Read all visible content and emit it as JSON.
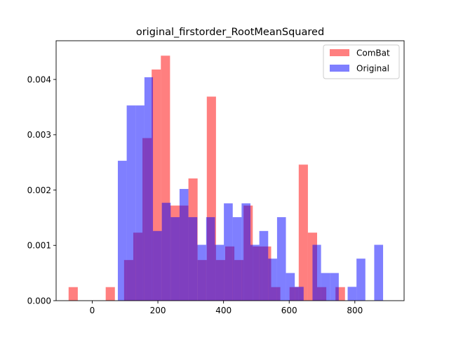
{
  "chart_data": {
    "type": "histogram",
    "title": "original_firstorder_RootMeanSquared",
    "xlabel": "",
    "ylabel": "",
    "xlim": [
      -110,
      950
    ],
    "ylim": [
      0,
      0.0047
    ],
    "xticks": [
      0,
      200,
      400,
      600,
      800
    ],
    "yticks": [
      0.0,
      0.001,
      0.002,
      0.003,
      0.004
    ],
    "xtick_labels": [
      "0",
      "200",
      "400",
      "600",
      "800"
    ],
    "ytick_labels": [
      "0.000",
      "0.001",
      "0.002",
      "0.003",
      "0.004"
    ],
    "grid": false,
    "legend_position": "top-right",
    "series": [
      {
        "name": "ComBat",
        "color": "#ff0000",
        "alpha": 0.5,
        "bin_edges": [
          -72,
          -44,
          -16,
          13,
          41,
          69,
          97,
          125,
          153,
          181,
          209,
          237,
          265,
          293,
          321,
          349,
          377,
          405,
          433,
          461,
          489,
          517,
          545,
          573,
          601,
          629,
          657,
          685,
          713,
          741,
          770
        ],
        "values": [
          0.000245,
          0,
          0,
          0,
          0.000245,
          0,
          0.000735,
          0.00123,
          0.00294,
          0.00418,
          0.00443,
          0.00172,
          0.00172,
          0.00221,
          0.000735,
          0.00369,
          0.000735,
          0.00098,
          0.000735,
          0.00172,
          0.00098,
          0.00098,
          0.000245,
          0,
          0.000245,
          0.00246,
          0.00123,
          0.000245,
          0,
          0.000245
        ]
      },
      {
        "name": "Original",
        "color": "#0000ff",
        "alpha": 0.5,
        "bin_edges": [
          78,
          105,
          132,
          159,
          185,
          212,
          239,
          266,
          293,
          320,
          347,
          374,
          401,
          428,
          455,
          482,
          509,
          536,
          563,
          590,
          617,
          644,
          671,
          697,
          724,
          751,
          778,
          805,
          832,
          859,
          886
        ],
        "values": [
          0.00253,
          0.00353,
          0.00353,
          0.00404,
          0.00126,
          0.00177,
          0.00151,
          0.00202,
          0.00151,
          0.00101,
          0.00151,
          0.00101,
          0.00176,
          0.00151,
          0.00176,
          0.00101,
          0.00126,
          0.00076,
          0.00151,
          0.0005,
          0.00025,
          0,
          0.00101,
          0.0005,
          0.0005,
          0,
          0.00025,
          0.00076,
          0,
          0.00101
        ]
      }
    ]
  }
}
